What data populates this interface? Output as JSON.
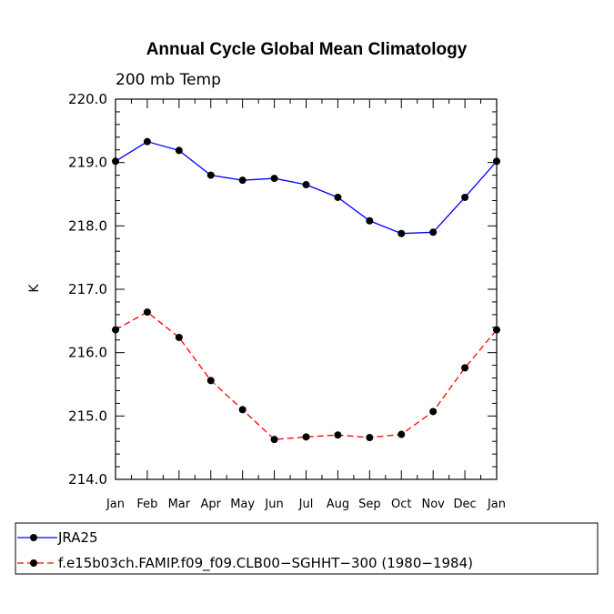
{
  "chart_data": {
    "type": "line",
    "title": "Annual Cycle Global Mean Climatology",
    "subtitle": "200 mb Temp",
    "xlabel": "",
    "ylabel": "K",
    "categories": [
      "Jan",
      "Feb",
      "Mar",
      "Apr",
      "May",
      "Jun",
      "Jul",
      "Aug",
      "Sep",
      "Oct",
      "Nov",
      "Dec",
      "Jan"
    ],
    "ylim": [
      214.0,
      220.0
    ],
    "yticks": [
      "214.0",
      "215.0",
      "216.0",
      "217.0",
      "218.0",
      "219.0",
      "220.0"
    ],
    "series": [
      {
        "name": "JRA25",
        "color": "#0000ff",
        "dash": "solid",
        "values": [
          219.02,
          219.33,
          219.19,
          218.8,
          218.72,
          218.75,
          218.65,
          218.45,
          218.08,
          217.88,
          217.9,
          218.45,
          219.02
        ]
      },
      {
        "name": "f.e15b03ch.FAMIP.f09_f09.CLB00−SGHHT−300 (1980−1984)",
        "color": "#ff0000",
        "dash": "dashed",
        "values": [
          216.36,
          216.64,
          216.24,
          215.56,
          215.1,
          214.63,
          214.67,
          214.7,
          214.66,
          214.71,
          215.07,
          215.76,
          216.36
        ]
      }
    ]
  }
}
